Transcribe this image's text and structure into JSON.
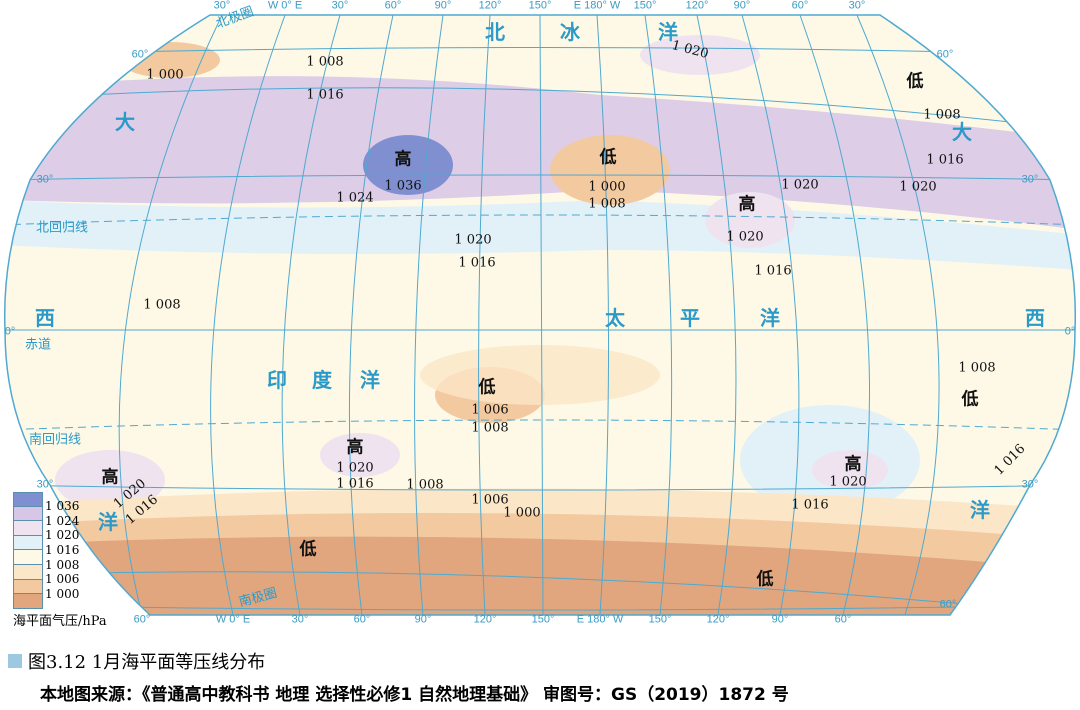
{
  "colors": {
    "c1036": "#7f8fd0",
    "c1024": "#d7c6e6",
    "c1020": "#efe3f0",
    "c1016": "#e2f1f8",
    "c1008": "#fdf9e6",
    "c1006": "#fbe6c7",
    "c1000": "#f3c99f",
    "below": "#e1a67e",
    "graticule": "#4fa9d0"
  },
  "legend": {
    "levels": [
      "1 036",
      "1 024",
      "1 020",
      "1 016",
      "1 008",
      "1 006",
      "1 000"
    ],
    "title": "海平面气压/hPa"
  },
  "degrees": [
    "30°",
    "W 0° E",
    "30°",
    "60°",
    "90°",
    "120°",
    "150°",
    "E 180° W",
    "150°",
    "120°",
    "90°",
    "60°",
    "30°",
    "60°",
    "W 0° E",
    "30°",
    "60°",
    "90°",
    "120°",
    "150°",
    "E 180° W",
    "150°",
    "120°",
    "90°",
    "60°",
    "60°",
    "30°",
    "0°",
    "30°",
    "60°",
    "30°",
    "0°",
    "30°",
    "60°"
  ],
  "geo_lines": [
    "北极圈",
    "北回归线",
    "赤道",
    "南回归线",
    "南极圈"
  ],
  "oceans": [
    "北",
    "冰",
    "洋",
    "大",
    "西",
    "洋",
    "大",
    "西",
    "洋",
    "太",
    "平",
    "洋",
    "印",
    "度",
    "洋"
  ],
  "pressure_centers": [
    "高",
    "低",
    "高",
    "低",
    "低",
    "高",
    "高",
    "高",
    "低",
    "低",
    "低"
  ],
  "isobar_values": [
    "1 000",
    "1 008",
    "1 016",
    "1 036",
    "1 024",
    "1 020",
    "1 000",
    "1 008",
    "1 020",
    "1 020",
    "1 008",
    "1 016",
    "1 020",
    "1 016",
    "1 020",
    "1 016",
    "1 008",
    "1 006",
    "1 008",
    "1 008",
    "1 020",
    "1 016",
    "1 008",
    "1 006",
    "1 000",
    "1 020",
    "1 016",
    "1 020",
    "1 016",
    "1 016"
  ],
  "caption": {
    "title": "图3.12  1月海平面等压线分布",
    "source": "本地图来源：《普通高中教科书 地理 选择性必修1 自然地理基础》 审图号：GS（2019）1872 号"
  }
}
